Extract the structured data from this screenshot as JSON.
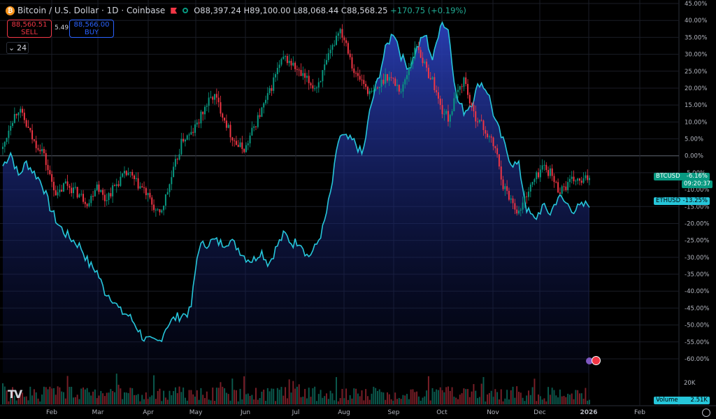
{
  "header": {
    "symbol_title": "Bitcoin / U.S. Dollar · 1D · Coinbase",
    "coin_glyph": "₿",
    "open": "O88,397.24",
    "high": "H89,100.00",
    "low": "L88,068.44",
    "close": "C88,568.25",
    "change": "+170.75 (+0.19%)"
  },
  "trade": {
    "sell_price": "88,560.51",
    "sell_label": "SELL",
    "spread": "5.49",
    "buy_price": "88,566.00",
    "buy_label": "BUY"
  },
  "interval_value": "24",
  "tags": {
    "btc_symbol": "BTCUSD",
    "btc_value": "-6.16%",
    "btc_countdown": "09:20:37",
    "eth_symbol": "ETHUSD",
    "eth_value": "-13.25%",
    "volume_label": "Volume",
    "volume_value": "2.51K",
    "volume_axis_label": "20K"
  },
  "colors": {
    "up": "#089981",
    "down": "#f23645",
    "eth_line": "#26c6da",
    "eth_fill_top": "#2a3fb8",
    "grid": "#1a1d26"
  },
  "chart_data": {
    "type": "line",
    "title": "",
    "x_tick_labels": [
      "Feb",
      "Mar",
      "Apr",
      "May",
      "Jun",
      "Jul",
      "Aug",
      "Sep",
      "Oct",
      "Nov",
      "Dec",
      "2026",
      "Feb"
    ],
    "y_tick_labels": [
      "45.00%",
      "40.00%",
      "35.00%",
      "30.00%",
      "25.00%",
      "20.00%",
      "15.00%",
      "10.00%",
      "5.00%",
      "0.00%",
      "-5.00%",
      "-10.00%",
      "-15.00%",
      "-20.00%",
      "-25.00%",
      "-30.00%",
      "-35.00%",
      "-40.00%",
      "-45.00%",
      "-50.00%",
      "-55.00%",
      "-60.00%"
    ],
    "ylim": [
      -62,
      45
    ],
    "zero_line": 0,
    "series": [
      {
        "name": "BTCUSD",
        "style": "candles",
        "x_start": "2025-01-01",
        "x_end": "2025-12-31",
        "percent_change": [
          2,
          10,
          14,
          9,
          4,
          2,
          -6,
          -12,
          -8,
          -10,
          -12,
          -14,
          -8,
          -13,
          -10,
          -7,
          -5,
          -8,
          -10,
          -14,
          -18,
          -11,
          -3,
          5,
          6,
          10,
          15,
          18,
          13,
          7,
          3,
          2,
          8,
          13,
          18,
          25,
          29,
          27,
          24,
          22,
          20,
          25,
          31,
          38,
          33,
          24,
          22,
          18,
          20,
          24,
          22,
          19,
          27,
          33,
          26,
          22,
          14,
          11,
          18,
          23,
          13,
          10,
          6,
          2,
          -9,
          -13,
          -17,
          -11,
          -7,
          -3,
          -5,
          -10,
          -9,
          -7,
          -8,
          -6
        ]
      },
      {
        "name": "ETHUSD",
        "style": "area",
        "x_start": "2025-01-01",
        "x_end": "2025-12-31",
        "percent_change": [
          -3,
          1,
          -6,
          -2,
          -5,
          -8,
          -15,
          -20,
          -23,
          -25,
          -27,
          -32,
          -34,
          -40,
          -42,
          -46,
          -47,
          -50,
          -54,
          -55,
          -55,
          -50,
          -48,
          -47,
          -46,
          -27,
          -26,
          -25,
          -26,
          -25,
          -27,
          -30,
          -31,
          -28,
          -32,
          -27,
          -23,
          -26,
          -25,
          -30,
          -27,
          -21,
          -10,
          6,
          5,
          4,
          0,
          14,
          23,
          32,
          37,
          29,
          26,
          32,
          36,
          28,
          40,
          37,
          17,
          13,
          16,
          22,
          19,
          10,
          4,
          -2,
          -3,
          -16,
          -19,
          -15,
          -17,
          -12,
          -14,
          -16,
          -15,
          -14
        ]
      },
      {
        "name": "Volume",
        "style": "histogram",
        "current": "2.51K",
        "axis_max_label": "20K"
      }
    ],
    "grid": true,
    "legend": "right-axis-tags"
  }
}
